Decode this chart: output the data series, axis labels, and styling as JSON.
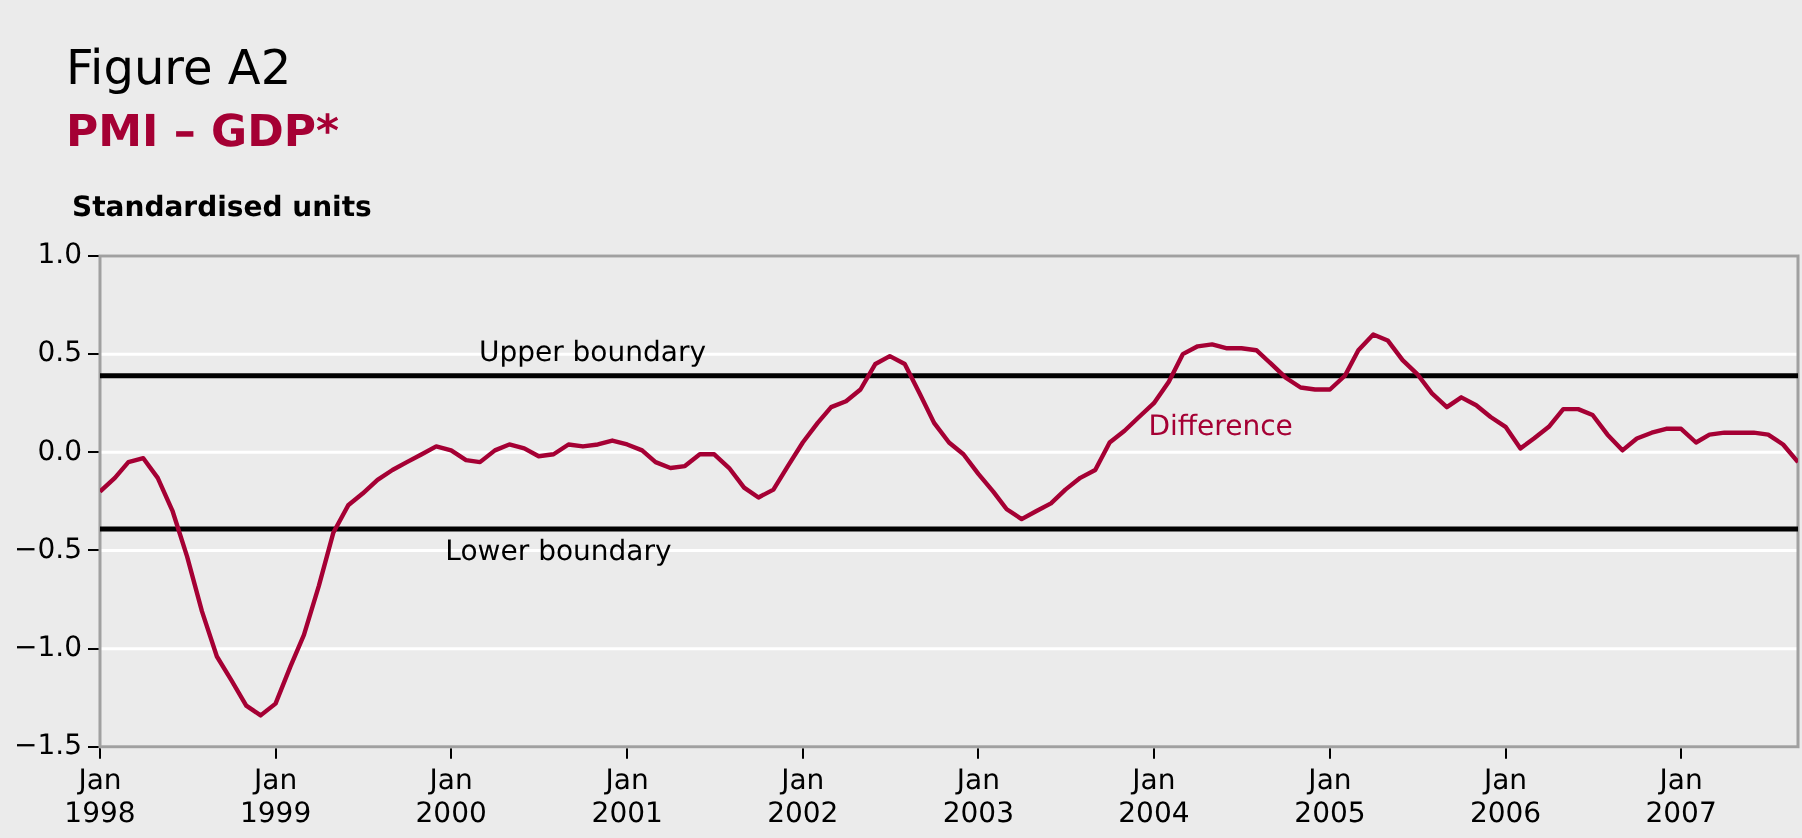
{
  "chart_data": {
    "type": "line",
    "title": "Figure A2",
    "subtitle": "PMI – GDP*",
    "ylabel": "Standardised units",
    "xlim": [
      "1998-01",
      "2007-09"
    ],
    "xticks": [
      {
        "value": "1998-01",
        "label": "Jan 1998"
      },
      {
        "value": "1999-01",
        "label": "Jan 1999"
      },
      {
        "value": "2000-01",
        "label": "Jan 2000"
      },
      {
        "value": "2001-01",
        "label": "Jan 2001"
      },
      {
        "value": "2002-01",
        "label": "Jan 2002"
      },
      {
        "value": "2003-01",
        "label": "Jan 2003"
      },
      {
        "value": "2004-01",
        "label": "Jan 2004"
      },
      {
        "value": "2005-01",
        "label": "Jan 2005"
      },
      {
        "value": "2006-01",
        "label": "Jan 2006"
      },
      {
        "value": "2007-01",
        "label": "Jan 2007"
      }
    ],
    "ylim": [
      -1.5,
      1.0
    ],
    "yticks": [
      {
        "value": -1.5,
        "label": "−1.5"
      },
      {
        "value": -1.0,
        "label": "−1.0"
      },
      {
        "value": -0.5,
        "label": "−0.5"
      },
      {
        "value": 0,
        "label": "0.0"
      },
      {
        "value": 0.5,
        "label": "0.5"
      },
      {
        "value": 1.0,
        "label": "1.0"
      }
    ],
    "x": [
      "1998-01",
      "1998-02",
      "1998-03",
      "1998-04",
      "1998-05",
      "1998-06",
      "1998-07",
      "1998-08",
      "1998-09",
      "1998-10",
      "1998-11",
      "1998-12",
      "1999-01",
      "1999-02",
      "1999-03",
      "1999-04",
      "1999-05",
      "1999-06",
      "1999-07",
      "1999-08",
      "1999-09",
      "1999-10",
      "1999-11",
      "1999-12",
      "2000-01",
      "2000-02",
      "2000-03",
      "2000-04",
      "2000-05",
      "2000-06",
      "2000-07",
      "2000-08",
      "2000-09",
      "2000-10",
      "2000-11",
      "2000-12",
      "2001-01",
      "2001-02",
      "2001-03",
      "2001-04",
      "2001-05",
      "2001-06",
      "2001-07",
      "2001-08",
      "2001-09",
      "2001-10",
      "2001-11",
      "2001-12",
      "2002-01",
      "2002-02",
      "2002-03",
      "2002-04",
      "2002-05",
      "2002-06",
      "2002-07",
      "2002-08",
      "2002-09",
      "2002-10",
      "2002-11",
      "2002-12",
      "2003-01",
      "2003-02",
      "2003-03",
      "2003-04",
      "2003-05",
      "2003-06",
      "2003-07",
      "2003-08",
      "2003-09",
      "2003-10",
      "2003-11",
      "2003-12",
      "2004-01",
      "2004-02",
      "2004-03",
      "2004-04",
      "2004-05",
      "2004-06",
      "2004-07",
      "2004-08",
      "2004-09",
      "2004-10",
      "2004-11",
      "2004-12",
      "2005-01",
      "2005-02",
      "2005-03",
      "2005-04",
      "2005-05",
      "2005-06",
      "2005-07",
      "2005-08",
      "2005-09",
      "2005-10",
      "2005-11",
      "2005-12",
      "2006-01",
      "2006-02",
      "2006-03",
      "2006-04",
      "2006-05",
      "2006-06",
      "2006-07",
      "2006-08",
      "2006-09",
      "2006-10",
      "2006-11",
      "2006-12",
      "2007-01",
      "2007-02",
      "2007-03",
      "2007-04",
      "2007-05",
      "2007-06",
      "2007-07",
      "2007-08",
      "2007-09"
    ],
    "series": [
      {
        "name": "Difference",
        "color": "#a50034",
        "values": [
          -0.2,
          -0.13,
          -0.05,
          -0.03,
          -0.13,
          -0.3,
          -0.53,
          -0.81,
          -1.04,
          -1.16,
          -1.29,
          -1.34,
          -1.28,
          -1.09,
          -0.93,
          -0.68,
          -0.41,
          -0.27,
          -0.21,
          -0.14,
          -0.09,
          -0.05,
          -0.01,
          0.03,
          0.01,
          -0.04,
          -0.05,
          0.01,
          0.04,
          0.02,
          -0.02,
          -0.01,
          0.04,
          0.03,
          0.04,
          0.06,
          0.04,
          0.01,
          -0.05,
          -0.08,
          -0.07,
          -0.01,
          -0.01,
          -0.08,
          -0.18,
          -0.23,
          -0.19,
          -0.07,
          0.05,
          0.15,
          0.23,
          0.26,
          0.32,
          0.45,
          0.49,
          0.45,
          0.3,
          0.15,
          0.05,
          -0.01,
          -0.11,
          -0.2,
          -0.29,
          -0.34,
          -0.3,
          -0.26,
          -0.19,
          -0.13,
          -0.09,
          0.05,
          0.11,
          0.18,
          0.25,
          0.36,
          0.5,
          0.54,
          0.55,
          0.53,
          0.53,
          0.52,
          0.45,
          0.38,
          0.33,
          0.32,
          0.32,
          0.39,
          0.52,
          0.6,
          0.57,
          0.47,
          0.4,
          0.3,
          0.23,
          0.28,
          0.24,
          0.18,
          0.13,
          0.02,
          0.07,
          0.13,
          0.22,
          0.22,
          0.19,
          0.09,
          0.01,
          0.07,
          0.1,
          0.12,
          0.12,
          0.05,
          0.09,
          0.1,
          0.1,
          0.1,
          0.09,
          0.04,
          -0.05
        ]
      }
    ],
    "ref_lines": [
      {
        "axis": "y",
        "value": 0.39,
        "label": "Upper boundary",
        "color": "#000000"
      },
      {
        "axis": "y",
        "value": -0.39,
        "label": "Lower boundary",
        "color": "#000000"
      }
    ],
    "grid": "y",
    "legend": false
  }
}
